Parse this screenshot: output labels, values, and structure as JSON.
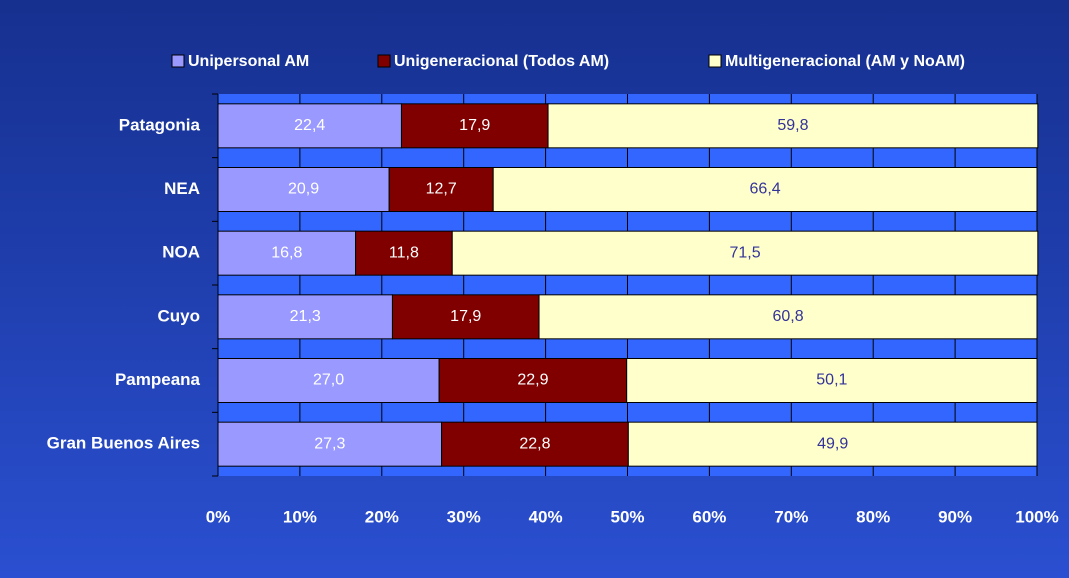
{
  "chart_data": {
    "type": "stacked_barh",
    "categories": [
      "Patagonia",
      "NEA",
      "NOA",
      "Cuyo",
      "Pampeana",
      "Gran Buenos Aires"
    ],
    "series": [
      {
        "name": "Unipersonal AM",
        "color": "#9999ff",
        "label_color": "#ffffff",
        "values": [
          22.4,
          20.9,
          16.8,
          21.3,
          27.0,
          27.3
        ],
        "value_labels": [
          "22,4",
          "20,9",
          "16,8",
          "21,3",
          "27,0",
          "27,3"
        ]
      },
      {
        "name": "Unigeneracional (Todos AM)",
        "color": "#800000",
        "label_color": "#ffffff",
        "values": [
          17.9,
          12.7,
          11.8,
          17.9,
          22.9,
          22.8
        ],
        "value_labels": [
          "17,9",
          "12,7",
          "11,8",
          "17,9",
          "22,9",
          "22,8"
        ]
      },
      {
        "name": "Multigeneracional (AM y NoAM)",
        "color": "#ffffcc",
        "label_color": "#333399",
        "values": [
          59.8,
          66.4,
          71.5,
          60.8,
          50.1,
          49.9
        ],
        "value_labels": [
          "59,8",
          "66,4",
          "71,5",
          "60,8",
          "50,1",
          "49,9"
        ]
      }
    ],
    "xlim": [
      0,
      100
    ],
    "xticks": [
      {
        "value": 0,
        "label": "0%"
      },
      {
        "value": 10,
        "label": "10%"
      },
      {
        "value": 20,
        "label": "20%"
      },
      {
        "value": 30,
        "label": "30%"
      },
      {
        "value": 40,
        "label": "40%"
      },
      {
        "value": 50,
        "label": "50%"
      },
      {
        "value": 60,
        "label": "60%"
      },
      {
        "value": 70,
        "label": "70%"
      },
      {
        "value": 80,
        "label": "80%"
      },
      {
        "value": 90,
        "label": "90%"
      },
      {
        "value": 100,
        "label": "100%"
      }
    ],
    "grid": true,
    "legend": "top"
  }
}
